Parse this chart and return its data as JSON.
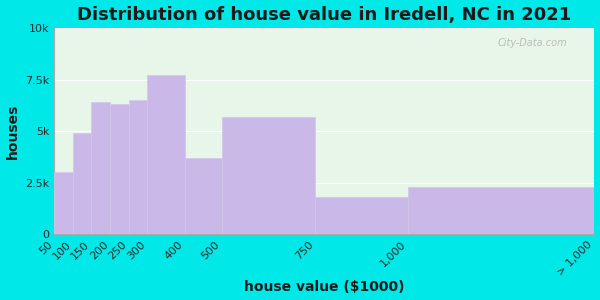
{
  "title": "Distribution of house value in Iredell, NC in 2021",
  "xlabel": "house value ($1000)",
  "ylabel": "houses",
  "bin_edges": [
    50,
    100,
    150,
    200,
    250,
    300,
    400,
    500,
    750,
    1000,
    1500
  ],
  "bar_values": [
    3000,
    4900,
    6400,
    6300,
    6500,
    7700,
    3700,
    5700,
    1800,
    2300
  ],
  "tick_positions": [
    50,
    100,
    150,
    200,
    250,
    300,
    400,
    500,
    750,
    1000,
    1500
  ],
  "tick_labels": [
    "50",
    "100",
    "150",
    "200",
    "250",
    "300",
    "400",
    "500",
    "750",
    "1,000",
    "> 1,000"
  ],
  "bar_color": "#c9b8e8",
  "bar_edge_color": "#d0c8e8",
  "background_outer": "#00e8e8",
  "background_inner": "#e8f5e9",
  "yticks": [
    0,
    2500,
    5000,
    7500,
    10000
  ],
  "ytick_labels": [
    "0",
    "2.5k",
    "5k",
    "7.5k",
    "10k"
  ],
  "ylim": [
    0,
    10000
  ],
  "xlim": [
    50,
    1500
  ],
  "title_fontsize": 13,
  "axis_label_fontsize": 10,
  "tick_fontsize": 8,
  "watermark_text": "City-Data.com"
}
